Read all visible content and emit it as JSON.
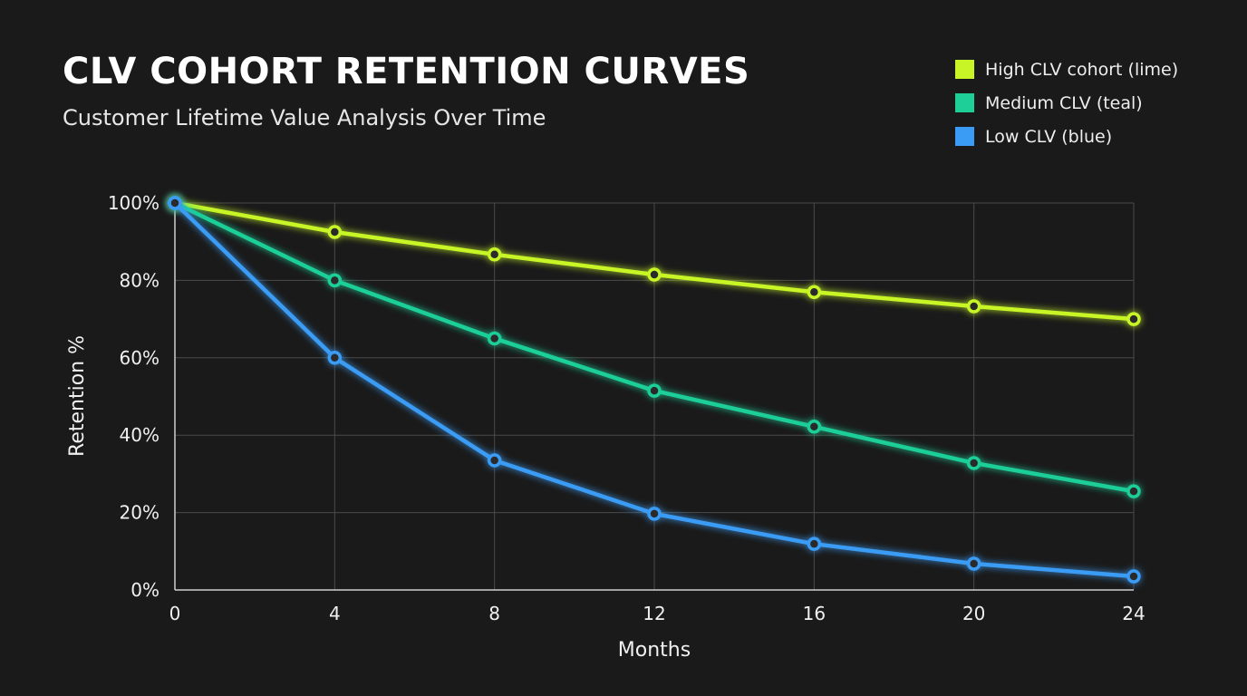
{
  "chart_data": {
    "type": "line",
    "title": "CLV COHORT RETENTION CURVES",
    "subtitle": "Customer Lifetime Value Analysis Over Time",
    "xlabel": "Months",
    "ylabel": "Retention %",
    "x": [
      0,
      4,
      8,
      12,
      16,
      20,
      24
    ],
    "xlim": [
      0,
      24
    ],
    "ylim": [
      0,
      100
    ],
    "x_ticks": [
      "0",
      "4",
      "8",
      "12",
      "16",
      "20",
      "24"
    ],
    "y_ticks": [
      "0%",
      "20%",
      "40%",
      "60%",
      "80%",
      "100%"
    ],
    "grid": true,
    "legend_position": "top-right",
    "series": [
      {
        "name": "High CLV cohort (lime)",
        "color": "#c8f526",
        "values": [
          100,
          92.5,
          86.7,
          81.5,
          77,
          73.3,
          70
        ]
      },
      {
        "name": "Medium CLV (teal)",
        "color": "#1ecf98",
        "values": [
          100,
          80,
          65,
          51.5,
          42.2,
          32.8,
          25.5
        ]
      },
      {
        "name": "Low CLV (blue)",
        "color": "#3b9cf5",
        "values": [
          100,
          60,
          33.5,
          19.7,
          11.9,
          6.8,
          3.5
        ]
      }
    ]
  }
}
